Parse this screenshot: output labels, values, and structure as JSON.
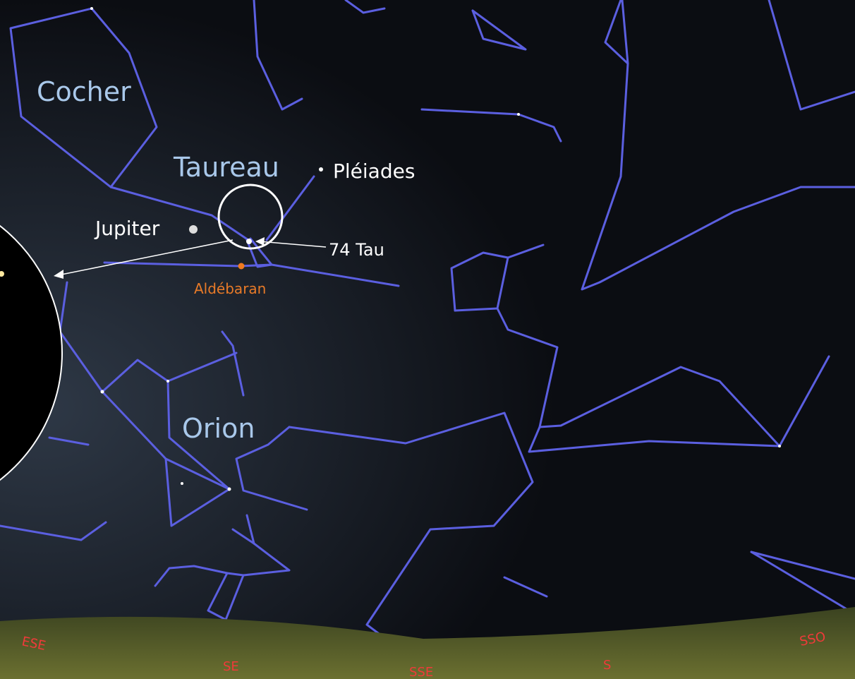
{
  "labels": {
    "constellations": [
      "Cocher",
      "Taureau",
      "Orion"
    ],
    "objects": {
      "pleiades": "Pléiades",
      "jupiter": "Jupiter",
      "star": "74 Tau",
      "aldebaran": "Aldébaran"
    },
    "cardinals": [
      "ESE",
      "SE",
      "SSE",
      "S",
      "SSO"
    ]
  }
}
